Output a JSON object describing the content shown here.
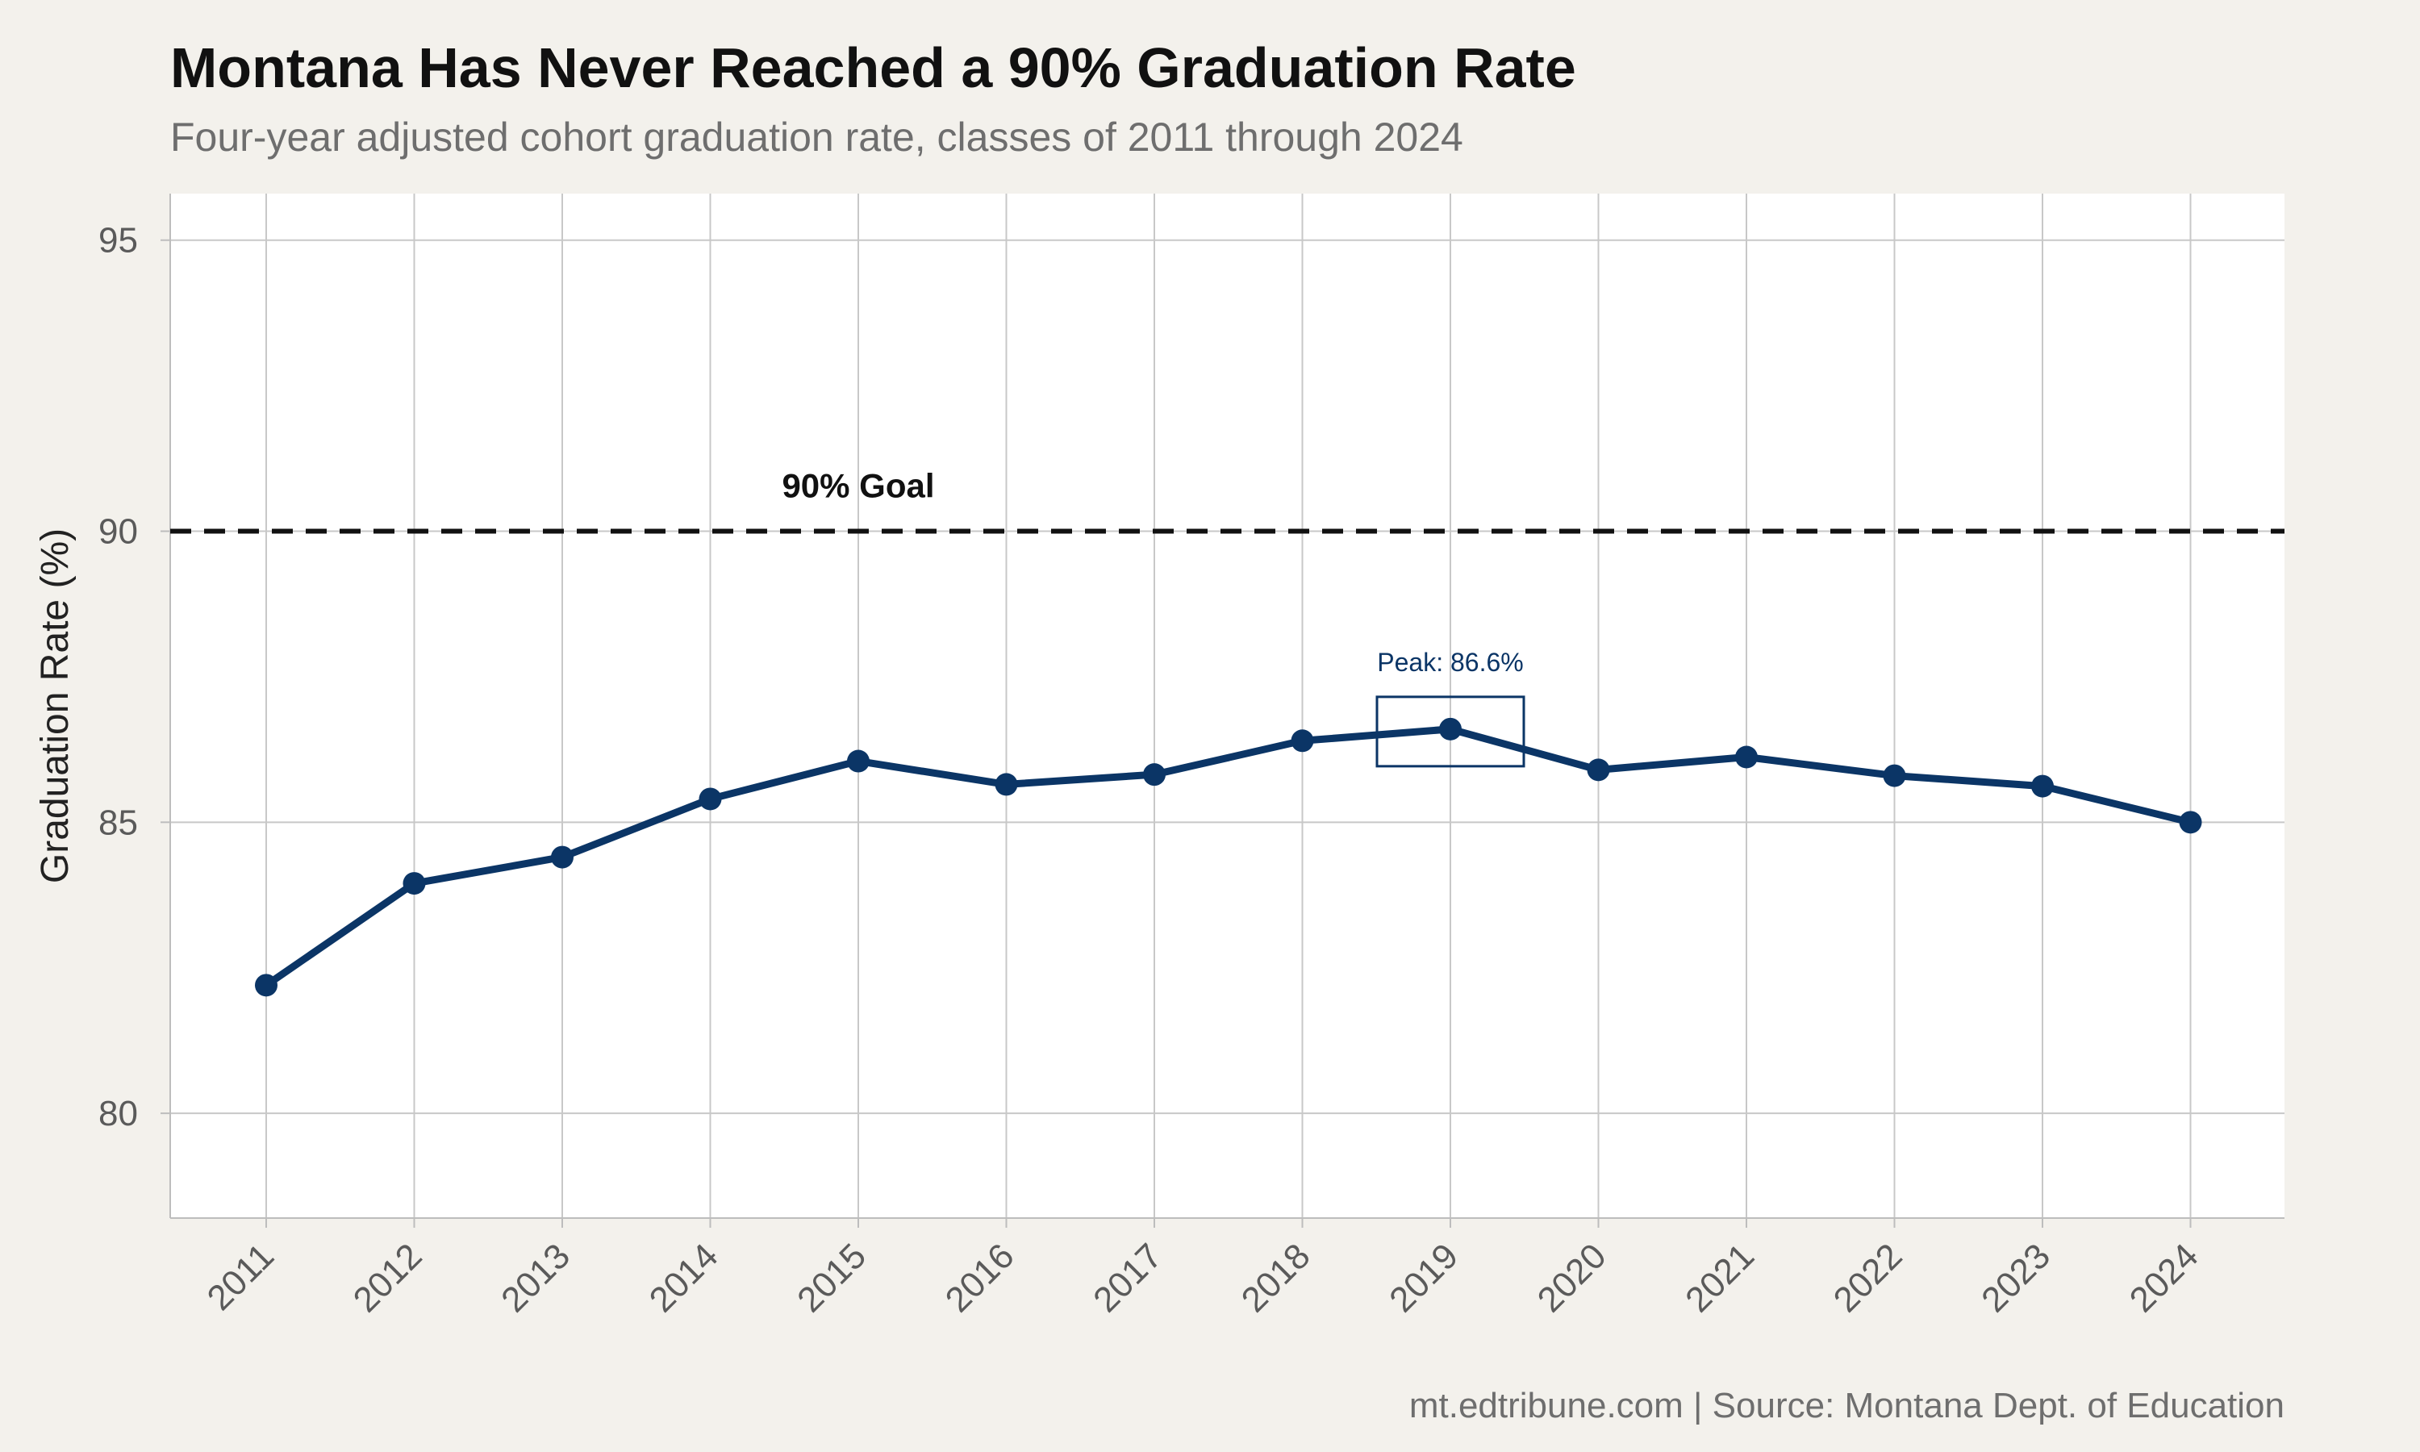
{
  "header": {
    "title": "Montana Has Never Reached a 90% Graduation Rate",
    "subtitle": "Four-year adjusted cohort graduation rate, classes of 2011 through 2024"
  },
  "footer": {
    "caption": "mt.edtribune.com | Source: Montana Dept. of Education"
  },
  "colors": {
    "background": "#f3f1ec",
    "panel": "#ffffff",
    "grid": "#c8c8c8",
    "series": "#0b3566",
    "goal_line": "#111111"
  },
  "chart_data": {
    "type": "line",
    "title": "Montana Has Never Reached a 90% Graduation Rate",
    "subtitle": "Four-year adjusted cohort graduation rate, classes of 2011 through 2024",
    "xlabel": "",
    "ylabel": "Graduation Rate (%)",
    "categories": [
      "2011",
      "2012",
      "2013",
      "2014",
      "2015",
      "2016",
      "2017",
      "2018",
      "2019",
      "2020",
      "2021",
      "2022",
      "2023",
      "2024"
    ],
    "series": [
      {
        "values": [
          82.2,
          83.95,
          84.4,
          85.4,
          86.05,
          85.65,
          85.82,
          86.4,
          86.6,
          85.9,
          86.12,
          85.8,
          85.62,
          85.0
        ]
      }
    ],
    "ylim": [
      78.2,
      95.8
    ],
    "yticks": [
      80,
      85,
      90,
      95
    ],
    "grid": true,
    "reference_line": {
      "value": 90,
      "label": "90% Goal",
      "style": "dashed"
    },
    "annotation": {
      "category": "2019",
      "value": 86.6,
      "label": "Peak: 86.6%"
    }
  }
}
